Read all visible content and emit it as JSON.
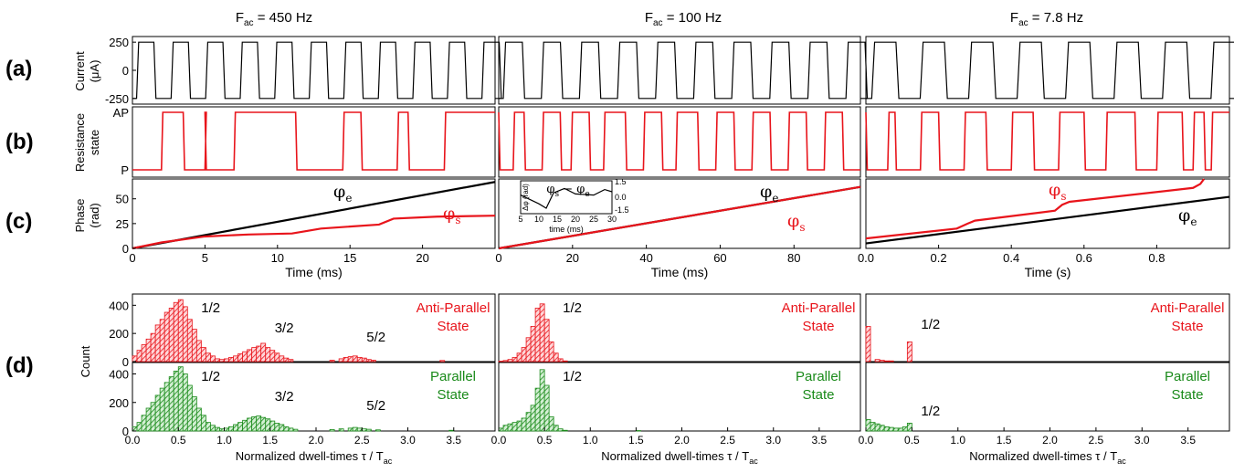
{
  "colors": {
    "red": "#e8141b",
    "green": "#1a8a1a",
    "black": "#000000",
    "axis": "#000000"
  },
  "columns": [
    {
      "title_main": "F",
      "title_sub": "ac",
      "title_rest": " = 450 Hz"
    },
    {
      "title_main": "F",
      "title_sub": "ac",
      "title_rest": " = 100 Hz"
    },
    {
      "title_main": "F",
      "title_sub": "ac",
      "title_rest": " = 7.8 Hz"
    }
  ],
  "row_labels": {
    "a": "(a)",
    "b": "(b)",
    "c": "(c)",
    "d": "(d)"
  },
  "y_labels": {
    "current": "Current",
    "current_unit": "(μA)",
    "resistance": "Resistance",
    "resistance_unit": "state",
    "phase": "Phase",
    "phase_unit": "(rad)",
    "count": "Count"
  },
  "chart_data": [
    {
      "type": "line",
      "panel": "a",
      "ylim": [
        -300,
        300
      ],
      "yticks": [
        "250",
        "0",
        "-250"
      ],
      "ytick_values": [
        250,
        0,
        -250
      ],
      "signal": "square current ±250 μA",
      "columns": [
        {
          "period_count": 10.5
        },
        {
          "period_count": 9.5
        },
        {
          "period_count": 7.5
        }
      ]
    },
    {
      "type": "line",
      "panel": "b",
      "yticks": [
        "AP",
        "P"
      ],
      "columns": [
        {
          "states": [
            0,
            0.08,
            1,
            0.12,
            1,
            0.14,
            0,
            0.2,
            1,
            0.2,
            0,
            0.28,
            1,
            0.45,
            0,
            0.58,
            1,
            0.63,
            0,
            0.73,
            1,
            0.76,
            0,
            0.86,
            1,
            1.0
          ]
        },
        {
          "states": [
            1,
            0,
            0,
            0.04,
            1,
            0.07,
            0,
            0.12,
            1,
            0.17,
            0,
            0.2,
            1,
            0.25,
            0,
            0.29,
            1,
            0.35,
            0,
            0.4,
            1,
            0.45,
            0,
            0.49,
            1,
            0.55,
            0,
            0.6,
            1,
            0.65,
            0,
            0.7,
            1,
            0.75,
            0,
            0.8,
            1,
            0.85,
            0,
            0.9,
            1,
            0.95,
            0,
            1.0
          ]
        },
        {
          "states": [
            1,
            0,
            0,
            0.06,
            1,
            0.08,
            0,
            0.15,
            1,
            0.2,
            0,
            0.27,
            1,
            0.33,
            0,
            0.4,
            1,
            0.46,
            0,
            0.53,
            1,
            0.6,
            0,
            0.66,
            1,
            0.74,
            0,
            0.8,
            1,
            0.87,
            0,
            0.9,
            1,
            0.93,
            0,
            0.95,
            1,
            1.0
          ]
        }
      ]
    },
    {
      "type": "line",
      "panel": "c",
      "ylim": [
        0,
        70
      ],
      "yticks": [
        "0",
        "25",
        "50"
      ],
      "ytick_values": [
        0,
        25,
        50
      ],
      "columns": [
        {
          "xlabel": "Time (ms)",
          "xlim": [
            0,
            25
          ],
          "xticks": [
            0,
            5,
            10,
            15,
            20
          ],
          "series": [
            {
              "name": "φe",
              "color": "black",
              "x": [
                0,
                25
              ],
              "y": [
                0,
                67
              ]
            },
            {
              "name": "φs",
              "color": "red",
              "x": [
                0,
                2,
                5,
                8,
                11,
                13,
                17,
                18,
                21,
                25
              ],
              "y": [
                0,
                6,
                12,
                14,
                15,
                20,
                24,
                30,
                32,
                33
              ]
            }
          ],
          "labels": {
            "phi_e": "φ",
            "phi_e_sub": "e",
            "phi_s": "φ",
            "phi_s_sub": "s"
          }
        },
        {
          "xlabel": "Time (ms)",
          "xlim": [
            0,
            98
          ],
          "xticks": [
            0,
            20,
            40,
            60,
            80
          ],
          "series": [
            {
              "name": "φe",
              "color": "black",
              "x": [
                0,
                98
              ],
              "y": [
                0,
                62
              ]
            },
            {
              "name": "φs",
              "color": "red",
              "x": [
                0,
                98
              ],
              "y": [
                0,
                62
              ]
            }
          ],
          "labels": {
            "phi_e": "φ",
            "phi_e_sub": "e",
            "phi_s": "φ",
            "phi_s_sub": "s"
          },
          "inset": {
            "title": "φs − φe",
            "title_main_1": "φ",
            "title_sub_1": "s",
            "title_op": " − ",
            "title_main_2": "φ",
            "title_sub_2": "e",
            "xlabel": "time (ms)",
            "ylabel": "Δφ (rad)",
            "xlim": [
              5,
              30
            ],
            "xticks": [
              5,
              10,
              15,
              20,
              25,
              30
            ],
            "ylim": [
              -1.5,
              1.5
            ],
            "yticks": [
              "1.5",
              "0.0",
              "-1.5"
            ],
            "x": [
              5,
              10,
              12,
              14,
              17,
              20,
              25,
              28,
              30
            ],
            "y": [
              0.2,
              -0.6,
              -1.0,
              0.4,
              0.8,
              0.3,
              0.2,
              0.7,
              0.5
            ]
          }
        },
        {
          "xlabel": "Time (s)",
          "xlim": [
            0,
            1.0
          ],
          "xticks": [
            "0.0",
            "0.2",
            "0.4",
            "0.6",
            "0.8"
          ],
          "xtick_values": [
            0,
            0.2,
            0.4,
            0.6,
            0.8
          ],
          "series": [
            {
              "name": "φe",
              "color": "black",
              "x": [
                0,
                1.0
              ],
              "y": [
                5,
                52
              ]
            },
            {
              "name": "φs",
              "color": "red",
              "x": [
                0,
                0.25,
                0.28,
                0.3,
                0.52,
                0.54,
                0.56,
                0.9,
                0.92,
                0.93
              ],
              "y": [
                10,
                20,
                25,
                28,
                38,
                44,
                47,
                61,
                65,
                70
              ]
            }
          ],
          "labels": {
            "phi_e": "φ",
            "phi_e_sub": "e",
            "phi_s": "φ",
            "phi_s_sub": "s"
          }
        }
      ]
    },
    {
      "type": "bar",
      "panel": "d",
      "ylim": [
        0,
        480
      ],
      "yticks": [
        "0",
        "200",
        "400"
      ],
      "ytick_values": [
        0,
        200,
        400
      ],
      "xlim": [
        0,
        3.95
      ],
      "xticks": [
        "0.0",
        "0.5",
        "1.0",
        "1.5",
        "2.0",
        "2.5",
        "3.0",
        "3.5"
      ],
      "xtick_values": [
        0,
        0.5,
        1.0,
        1.5,
        2.0,
        2.5,
        3.0,
        3.5
      ],
      "xlabel_main": "Normalized dwell-times τ / T",
      "xlabel_sub": "ac",
      "bin_width": 0.05,
      "columns": [
        {
          "ap": {
            "label_1": "Anti-Parallel",
            "label_2": "State",
            "peaks": [
              "1/2",
              "3/2",
              "5/2"
            ],
            "peak_x": [
              0.55,
              1.45,
              2.45
            ],
            "x": [
              0.05,
              0.1,
              0.15,
              0.2,
              0.25,
              0.3,
              0.35,
              0.4,
              0.45,
              0.5,
              0.55,
              0.6,
              0.65,
              0.7,
              0.75,
              0.8,
              0.85,
              0.9,
              0.95,
              1.0,
              1.05,
              1.1,
              1.15,
              1.2,
              1.25,
              1.3,
              1.35,
              1.4,
              1.45,
              1.5,
              1.55,
              1.6,
              1.65,
              1.7,
              1.75,
              2.2,
              2.3,
              2.35,
              2.4,
              2.45,
              2.5,
              2.55,
              2.6,
              2.65,
              3.4
            ],
            "y": [
              40,
              80,
              120,
              160,
              200,
              260,
              300,
              350,
              380,
              420,
              440,
              390,
              300,
              230,
              150,
              100,
              60,
              40,
              20,
              15,
              20,
              30,
              40,
              55,
              70,
              85,
              100,
              110,
              130,
              100,
              80,
              60,
              40,
              25,
              15,
              10,
              20,
              30,
              35,
              40,
              30,
              25,
              15,
              10,
              8
            ]
          },
          "p": {
            "label_1": "Parallel",
            "label_2": "State",
            "peaks": [
              "1/2",
              "3/2",
              "5/2"
            ],
            "peak_x": [
              0.55,
              1.45,
              2.45
            ],
            "x": [
              0.05,
              0.1,
              0.15,
              0.2,
              0.25,
              0.3,
              0.35,
              0.4,
              0.45,
              0.5,
              0.55,
              0.6,
              0.65,
              0.7,
              0.75,
              0.8,
              0.85,
              0.9,
              0.95,
              1.0,
              1.05,
              1.1,
              1.15,
              1.2,
              1.25,
              1.3,
              1.35,
              1.4,
              1.45,
              1.5,
              1.55,
              1.6,
              1.65,
              1.7,
              1.75,
              1.8,
              2.2,
              2.3,
              2.4,
              2.45,
              2.5,
              2.55,
              2.6,
              2.7,
              3.5
            ],
            "y": [
              30,
              60,
              110,
              160,
              200,
              250,
              300,
              340,
              380,
              420,
              450,
              400,
              320,
              240,
              160,
              110,
              60,
              40,
              25,
              15,
              20,
              30,
              45,
              60,
              75,
              90,
              100,
              105,
              95,
              85,
              70,
              55,
              45,
              30,
              20,
              12,
              10,
              15,
              20,
              25,
              20,
              15,
              12,
              8,
              5
            ]
          }
        },
        {
          "ap": {
            "label_1": "Anti-Parallel",
            "label_2": "State",
            "peaks": [
              "1/2"
            ],
            "peak_x": [
              0.5
            ],
            "x": [
              0.05,
              0.1,
              0.15,
              0.2,
              0.25,
              0.3,
              0.35,
              0.4,
              0.45,
              0.5,
              0.55,
              0.6,
              0.65,
              0.7,
              0.75
            ],
            "y": [
              3,
              8,
              15,
              30,
              60,
              100,
              170,
              250,
              380,
              410,
              300,
              140,
              60,
              20,
              5
            ]
          },
          "p": {
            "label_1": "Parallel",
            "label_2": "State",
            "peaks": [
              "1/2"
            ],
            "peak_x": [
              0.5
            ],
            "x": [
              0.05,
              0.1,
              0.15,
              0.2,
              0.25,
              0.3,
              0.35,
              0.4,
              0.45,
              0.5,
              0.55,
              0.6,
              0.65,
              0.7,
              0.75,
              1.55
            ],
            "y": [
              20,
              40,
              50,
              60,
              70,
              90,
              130,
              180,
              300,
              430,
              320,
              100,
              40,
              15,
              5,
              3
            ]
          }
        },
        {
          "ap": {
            "label_1": "Anti-Parallel",
            "label_2": "State",
            "peaks": [
              "1/2"
            ],
            "peak_x": [
              0.5
            ],
            "x": [
              0.05,
              0.15,
              0.2,
              0.25,
              0.3,
              0.5
            ],
            "y": [
              250,
              15,
              10,
              5,
              5,
              140
            ]
          },
          "p": {
            "label_1": "Parallel",
            "label_2": "State",
            "peaks": [
              "1/2"
            ],
            "peak_x": [
              0.5
            ],
            "x": [
              0.05,
              0.1,
              0.15,
              0.2,
              0.25,
              0.3,
              0.35,
              0.4,
              0.45,
              0.5
            ],
            "y": [
              80,
              60,
              50,
              40,
              30,
              25,
              20,
              20,
              30,
              55
            ]
          }
        }
      ]
    }
  ]
}
